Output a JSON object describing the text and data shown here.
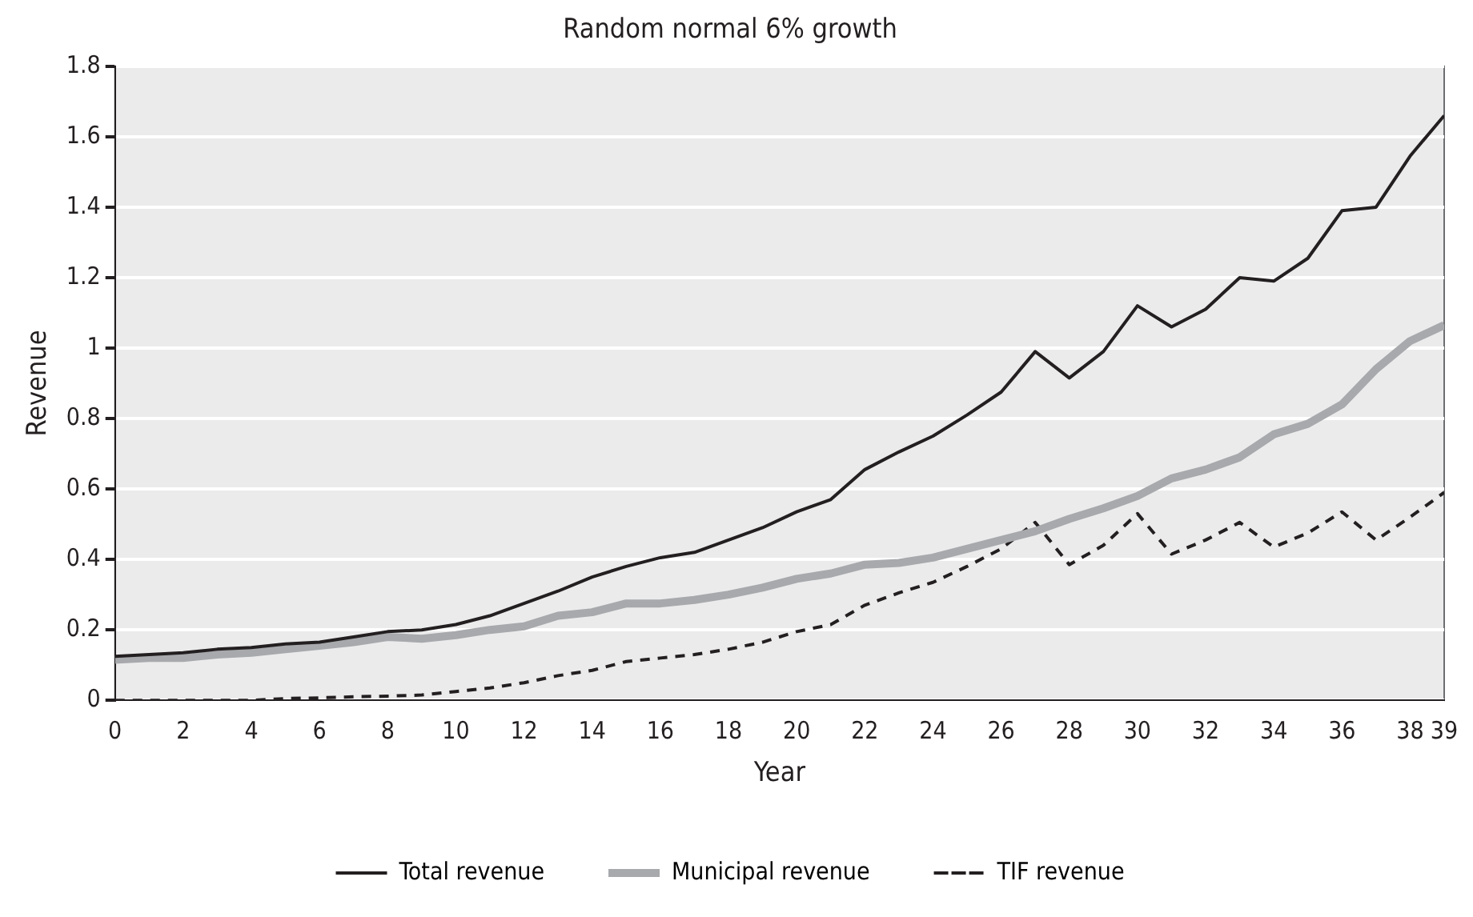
{
  "chart_data": {
    "type": "line",
    "title": "Random normal 6% growth",
    "xlabel": "Year",
    "ylabel": "Revenue",
    "x": [
      0,
      1,
      2,
      3,
      4,
      5,
      6,
      7,
      8,
      9,
      10,
      11,
      12,
      13,
      14,
      15,
      16,
      17,
      18,
      19,
      20,
      21,
      22,
      23,
      24,
      25,
      26,
      27,
      28,
      29,
      30,
      31,
      32,
      33,
      34,
      35,
      36,
      37,
      38,
      39
    ],
    "series": [
      {
        "name": "Total revenue",
        "color": "#231f20",
        "line_style": "solid",
        "values": [
          0.125,
          0.13,
          0.135,
          0.145,
          0.15,
          0.16,
          0.165,
          0.18,
          0.195,
          0.2,
          0.215,
          0.24,
          0.275,
          0.31,
          0.35,
          0.38,
          0.405,
          0.42,
          0.455,
          0.49,
          0.535,
          0.57,
          0.655,
          0.705,
          0.75,
          0.81,
          0.875,
          0.99,
          0.915,
          0.99,
          1.12,
          1.06,
          1.11,
          1.2,
          1.19,
          1.255,
          1.39,
          1.4,
          1.545,
          1.66
        ]
      },
      {
        "name": "Municipal revenue",
        "color": "#a7a9ac",
        "line_style": "solid",
        "values": [
          0.115,
          0.12,
          0.12,
          0.13,
          0.135,
          0.145,
          0.155,
          0.165,
          0.18,
          0.175,
          0.185,
          0.2,
          0.21,
          0.24,
          0.25,
          0.275,
          0.275,
          0.285,
          0.3,
          0.32,
          0.345,
          0.36,
          0.385,
          0.39,
          0.405,
          0.43,
          0.455,
          0.48,
          0.515,
          0.545,
          0.58,
          0.63,
          0.655,
          0.69,
          0.755,
          0.785,
          0.84,
          0.94,
          1.02,
          1.065
        ]
      },
      {
        "name": "TIF revenue",
        "color": "#231f20",
        "line_style": "dashed",
        "values": [
          0,
          0,
          0,
          0,
          0,
          0.005,
          0.007,
          0.01,
          0.012,
          0.015,
          0.025,
          0.035,
          0.05,
          0.07,
          0.085,
          0.11,
          0.12,
          0.13,
          0.145,
          0.165,
          0.195,
          0.215,
          0.27,
          0.305,
          0.335,
          0.38,
          0.43,
          0.505,
          0.385,
          0.44,
          0.53,
          0.415,
          0.455,
          0.505,
          0.435,
          0.475,
          0.535,
          0.455,
          0.52,
          0.59
        ]
      }
    ],
    "xlim": [
      0,
      39
    ],
    "xticks": [
      0,
      2,
      4,
      6,
      8,
      10,
      12,
      14,
      16,
      18,
      20,
      22,
      24,
      26,
      28,
      30,
      32,
      34,
      36,
      38,
      39
    ],
    "ylim": [
      0,
      1.8
    ],
    "yticks": [
      0,
      0.2,
      0.4,
      0.6,
      0.8,
      1,
      1.2,
      1.4,
      1.6,
      1.8
    ],
    "grid": "y",
    "legend": "bottom",
    "marker": "none"
  }
}
